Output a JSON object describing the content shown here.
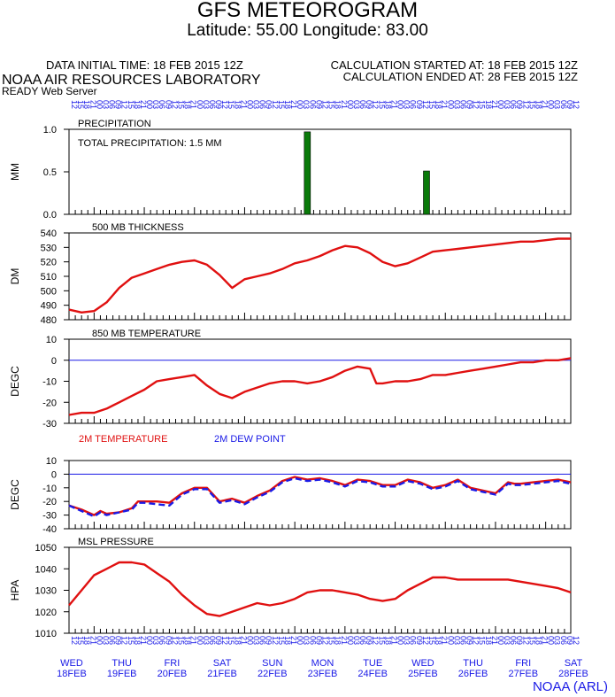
{
  "header": {
    "title": "GFS METEOROGRAM",
    "subtitle": "Latitude: 55.00 Longitude:  83.00",
    "initial_time": "DATA INITIAL TIME: 18 FEB 2015 12Z",
    "lab": "NOAA AIR RESOURCES LABORATORY",
    "server": "READY Web Server",
    "calc_started": "CALCULATION STARTED AT: 18 FEB 2015 12Z",
    "calc_ended": "CALCULATION ENDED AT: 28 FEB 2015 12Z"
  },
  "footer": "NOAA (ARL)",
  "colors": {
    "red": "#e01010",
    "blue": "#1a1ae6",
    "green": "#0a7a0a",
    "zero_line": "#1a1ae6"
  },
  "hour_ticks": [
    "12",
    "15",
    "18",
    "21",
    "00",
    "03",
    "06",
    "09"
  ],
  "days": [
    {
      "dow": "WED",
      "date": "18FEB"
    },
    {
      "dow": "THU",
      "date": "19FEB"
    },
    {
      "dow": "FRI",
      "date": "20FEB"
    },
    {
      "dow": "SAT",
      "date": "21FEB"
    },
    {
      "dow": "SUN",
      "date": "22FEB"
    },
    {
      "dow": "MON",
      "date": "23FEB"
    },
    {
      "dow": "TUE",
      "date": "24FEB"
    },
    {
      "dow": "WED",
      "date": "25FEB"
    },
    {
      "dow": "THU",
      "date": "26FEB"
    },
    {
      "dow": "FRI",
      "date": "27FEB"
    },
    {
      "dow": "SAT",
      "date": "28FEB"
    }
  ],
  "chart_data": [
    {
      "type": "bar",
      "title": "PRECIPITATION",
      "annotation": "TOTAL PRECIPITATION:  1.5 MM",
      "ylabel": "MM",
      "ylim": [
        0,
        1.0
      ],
      "yticks": [
        "0.0",
        "0.5",
        "1.0"
      ],
      "x_unit": "hours since 18 FEB 2015 12Z, 3-hourly",
      "bars": [
        {
          "x": 114,
          "value": 0.97
        },
        {
          "x": 171,
          "value": 0.51
        }
      ]
    },
    {
      "type": "line",
      "title": "500 MB  THICKNESS",
      "ylabel": "DM",
      "ylim": [
        480,
        540
      ],
      "yticks": [
        "480",
        "490",
        "500",
        "510",
        "520",
        "530",
        "540"
      ],
      "series": [
        {
          "values": [
            [
              0,
              487
            ],
            [
              6,
              485
            ],
            [
              12,
              486
            ],
            [
              18,
              492
            ],
            [
              24,
              502
            ],
            [
              30,
              509
            ],
            [
              36,
              512
            ],
            [
              42,
              515
            ],
            [
              48,
              518
            ],
            [
              54,
              520
            ],
            [
              60,
              521
            ],
            [
              66,
              518
            ],
            [
              72,
              511
            ],
            [
              78,
              502
            ],
            [
              84,
              508
            ],
            [
              90,
              510
            ],
            [
              96,
              512
            ],
            [
              102,
              515
            ],
            [
              108,
              519
            ],
            [
              114,
              521
            ],
            [
              120,
              524
            ],
            [
              126,
              528
            ],
            [
              132,
              531
            ],
            [
              138,
              530
            ],
            [
              144,
              526
            ],
            [
              150,
              520
            ],
            [
              156,
              517
            ],
            [
              162,
              519
            ],
            [
              168,
              523
            ],
            [
              174,
              527
            ],
            [
              180,
              528
            ],
            [
              186,
              529
            ],
            [
              192,
              530
            ],
            [
              198,
              531
            ],
            [
              204,
              532
            ],
            [
              210,
              533
            ],
            [
              216,
              534
            ],
            [
              222,
              534
            ],
            [
              228,
              535
            ],
            [
              234,
              536
            ],
            [
              240,
              536
            ]
          ]
        }
      ]
    },
    {
      "type": "line",
      "title": "850 MB  TEMPERATURE",
      "ylabel": "DEGC",
      "ylim": [
        -30,
        10
      ],
      "yticks": [
        "-30",
        "-20",
        "-10",
        "0",
        "10"
      ],
      "series": [
        {
          "values": [
            [
              0,
              -26
            ],
            [
              6,
              -25
            ],
            [
              12,
              -25
            ],
            [
              18,
              -23
            ],
            [
              24,
              -20
            ],
            [
              30,
              -17
            ],
            [
              36,
              -14
            ],
            [
              42,
              -10
            ],
            [
              48,
              -9
            ],
            [
              54,
              -8
            ],
            [
              60,
              -7
            ],
            [
              66,
              -12
            ],
            [
              72,
              -16
            ],
            [
              78,
              -18
            ],
            [
              84,
              -15
            ],
            [
              90,
              -13
            ],
            [
              96,
              -11
            ],
            [
              102,
              -10
            ],
            [
              108,
              -10
            ],
            [
              114,
              -11
            ],
            [
              120,
              -10
            ],
            [
              126,
              -8
            ],
            [
              132,
              -5
            ],
            [
              138,
              -3
            ],
            [
              144,
              -4
            ],
            [
              147,
              -11
            ],
            [
              150,
              -11
            ],
            [
              156,
              -10
            ],
            [
              162,
              -10
            ],
            [
              168,
              -9
            ],
            [
              174,
              -7
            ],
            [
              180,
              -7
            ],
            [
              186,
              -6
            ],
            [
              192,
              -5
            ],
            [
              198,
              -4
            ],
            [
              204,
              -3
            ],
            [
              210,
              -2
            ],
            [
              216,
              -1
            ],
            [
              222,
              -1
            ],
            [
              228,
              0
            ],
            [
              234,
              0
            ],
            [
              240,
              1
            ]
          ]
        }
      ]
    },
    {
      "type": "line",
      "legend": [
        "2M TEMPERATURE",
        "2M   DEW POINT"
      ],
      "ylabel": "DEGC",
      "ylim": [
        -40,
        10
      ],
      "yticks": [
        "-40",
        "-30",
        "-20",
        "-10",
        "0",
        "10"
      ],
      "series": [
        {
          "name": "2M TEMPERATURE",
          "values": [
            [
              0,
              -23
            ],
            [
              6,
              -26
            ],
            [
              12,
              -30
            ],
            [
              15,
              -27
            ],
            [
              18,
              -29
            ],
            [
              24,
              -28
            ],
            [
              30,
              -25
            ],
            [
              33,
              -20
            ],
            [
              36,
              -20
            ],
            [
              42,
              -20
            ],
            [
              48,
              -21
            ],
            [
              54,
              -14
            ],
            [
              60,
              -10
            ],
            [
              66,
              -10
            ],
            [
              72,
              -20
            ],
            [
              78,
              -18
            ],
            [
              84,
              -21
            ],
            [
              90,
              -16
            ],
            [
              96,
              -12
            ],
            [
              102,
              -5
            ],
            [
              108,
              -2
            ],
            [
              114,
              -4
            ],
            [
              120,
              -3
            ],
            [
              126,
              -5
            ],
            [
              132,
              -8
            ],
            [
              138,
              -4
            ],
            [
              144,
              -5
            ],
            [
              150,
              -8
            ],
            [
              156,
              -8
            ],
            [
              162,
              -4
            ],
            [
              168,
              -6
            ],
            [
              174,
              -10
            ],
            [
              180,
              -8
            ],
            [
              186,
              -4
            ],
            [
              192,
              -10
            ],
            [
              198,
              -12
            ],
            [
              204,
              -14
            ],
            [
              210,
              -6
            ],
            [
              213,
              -7
            ],
            [
              216,
              -7
            ],
            [
              222,
              -6
            ],
            [
              228,
              -5
            ],
            [
              234,
              -4
            ],
            [
              240,
              -6
            ]
          ]
        },
        {
          "name": "2M   DEW POINT",
          "values": [
            [
              0,
              -23
            ],
            [
              6,
              -27
            ],
            [
              12,
              -31
            ],
            [
              15,
              -28
            ],
            [
              18,
              -30
            ],
            [
              24,
              -28
            ],
            [
              30,
              -26
            ],
            [
              33,
              -21
            ],
            [
              36,
              -21
            ],
            [
              42,
              -22
            ],
            [
              48,
              -23
            ],
            [
              54,
              -15
            ],
            [
              60,
              -11
            ],
            [
              66,
              -11
            ],
            [
              72,
              -21
            ],
            [
              78,
              -19
            ],
            [
              84,
              -22
            ],
            [
              90,
              -17
            ],
            [
              96,
              -13
            ],
            [
              102,
              -6
            ],
            [
              108,
              -3
            ],
            [
              114,
              -5
            ],
            [
              120,
              -4
            ],
            [
              126,
              -6
            ],
            [
              132,
              -9
            ],
            [
              138,
              -5
            ],
            [
              144,
              -6
            ],
            [
              150,
              -9
            ],
            [
              156,
              -9
            ],
            [
              162,
              -5
            ],
            [
              168,
              -7
            ],
            [
              174,
              -11
            ],
            [
              180,
              -9
            ],
            [
              186,
              -5
            ],
            [
              192,
              -11
            ],
            [
              198,
              -13
            ],
            [
              204,
              -15
            ],
            [
              210,
              -7
            ],
            [
              213,
              -8
            ],
            [
              216,
              -8
            ],
            [
              222,
              -7
            ],
            [
              228,
              -6
            ],
            [
              234,
              -5
            ],
            [
              240,
              -7
            ]
          ]
        }
      ]
    },
    {
      "type": "line",
      "title": "MSL PRESSURE",
      "ylabel": "HPA",
      "ylim": [
        1010,
        1050
      ],
      "yticks": [
        "1010",
        "1020",
        "1030",
        "1040",
        "1050"
      ],
      "series": [
        {
          "values": [
            [
              0,
              1023
            ],
            [
              6,
              1030
            ],
            [
              12,
              1037
            ],
            [
              18,
              1040
            ],
            [
              24,
              1043
            ],
            [
              30,
              1043
            ],
            [
              36,
              1042
            ],
            [
              42,
              1038
            ],
            [
              48,
              1034
            ],
            [
              54,
              1028
            ],
            [
              60,
              1023
            ],
            [
              66,
              1019
            ],
            [
              72,
              1018
            ],
            [
              78,
              1020
            ],
            [
              84,
              1022
            ],
            [
              90,
              1024
            ],
            [
              96,
              1023
            ],
            [
              102,
              1024
            ],
            [
              108,
              1026
            ],
            [
              114,
              1029
            ],
            [
              120,
              1030
            ],
            [
              126,
              1030
            ],
            [
              132,
              1029
            ],
            [
              138,
              1028
            ],
            [
              144,
              1026
            ],
            [
              150,
              1025
            ],
            [
              156,
              1026
            ],
            [
              162,
              1030
            ],
            [
              168,
              1033
            ],
            [
              174,
              1036
            ],
            [
              180,
              1036
            ],
            [
              186,
              1035
            ],
            [
              192,
              1035
            ],
            [
              198,
              1035
            ],
            [
              204,
              1035
            ],
            [
              210,
              1035
            ],
            [
              216,
              1034
            ],
            [
              222,
              1033
            ],
            [
              228,
              1032
            ],
            [
              234,
              1031
            ],
            [
              240,
              1029
            ]
          ]
        }
      ]
    }
  ]
}
